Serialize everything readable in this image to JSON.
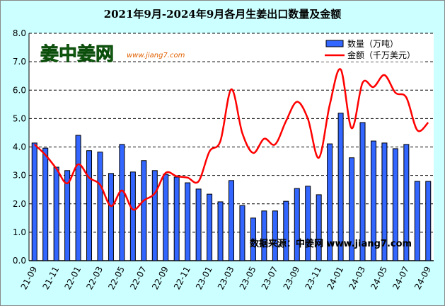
{
  "chart_data": {
    "type": "bar+line",
    "title": "2021年9月-2024年9月各月生姜出口数量及金额",
    "categories": [
      "21-09",
      "21-10",
      "21-11",
      "21-12",
      "22-01",
      "22-02",
      "22-03",
      "22-04",
      "22-05",
      "22-06",
      "22-07",
      "22-08",
      "22-09",
      "22-10",
      "22-11",
      "22-12",
      "23-01",
      "23-02",
      "23-03",
      "23-04",
      "23-05",
      "23-06",
      "23-07",
      "23-08",
      "23-09",
      "23-10",
      "23-11",
      "23-12",
      "24-01",
      "24-02",
      "24-03",
      "24-04",
      "24-05",
      "24-06",
      "24-07",
      "24-08",
      "24-09"
    ],
    "x_tick_labels": [
      "21-09",
      "21-11",
      "22-01",
      "22-03",
      "22-05",
      "22-07",
      "22-09",
      "22-11",
      "23-01",
      "23-03",
      "23-05",
      "23-07",
      "23-09",
      "23-11",
      "24-01",
      "24-03",
      "24-05",
      "24-07",
      "24-09"
    ],
    "series": [
      {
        "name": "数量（万吨）",
        "type": "bar",
        "color": "#3366ff",
        "values": [
          4.14,
          3.96,
          3.29,
          3.17,
          4.41,
          3.87,
          3.82,
          3.07,
          4.09,
          3.12,
          3.52,
          3.17,
          3.04,
          2.94,
          2.74,
          2.52,
          2.34,
          2.07,
          2.82,
          1.94,
          1.5,
          1.75,
          1.75,
          2.09,
          2.54,
          2.62,
          2.32,
          4.11,
          5.19,
          3.62,
          4.86,
          4.21,
          4.14,
          3.94,
          4.09,
          2.79,
          2.79
        ]
      },
      {
        "name": "金额（千万美元）",
        "type": "line",
        "color": "#ff0000",
        "values": [
          4.09,
          3.72,
          3.24,
          2.72,
          3.39,
          2.92,
          2.67,
          1.92,
          2.47,
          1.8,
          2.12,
          2.37,
          3.09,
          2.97,
          2.92,
          2.79,
          3.84,
          4.21,
          6.03,
          4.49,
          3.79,
          4.29,
          4.09,
          4.91,
          5.59,
          4.99,
          3.62,
          5.49,
          6.73,
          4.66,
          6.26,
          6.11,
          6.53,
          5.91,
          5.74,
          4.59,
          4.86
        ]
      }
    ],
    "ylim": [
      0,
      8
    ],
    "y_ticks": [
      "0.0",
      "1.0",
      "2.0",
      "3.0",
      "4.0",
      "5.0",
      "6.0",
      "7.0",
      "8.0"
    ],
    "grid": true,
    "legend": "top-right",
    "source_note": "数据来源：中姜网 www.jiang7.com",
    "logo_text": "姜中姜网",
    "logo_url_text": "www.jiang7.com"
  }
}
